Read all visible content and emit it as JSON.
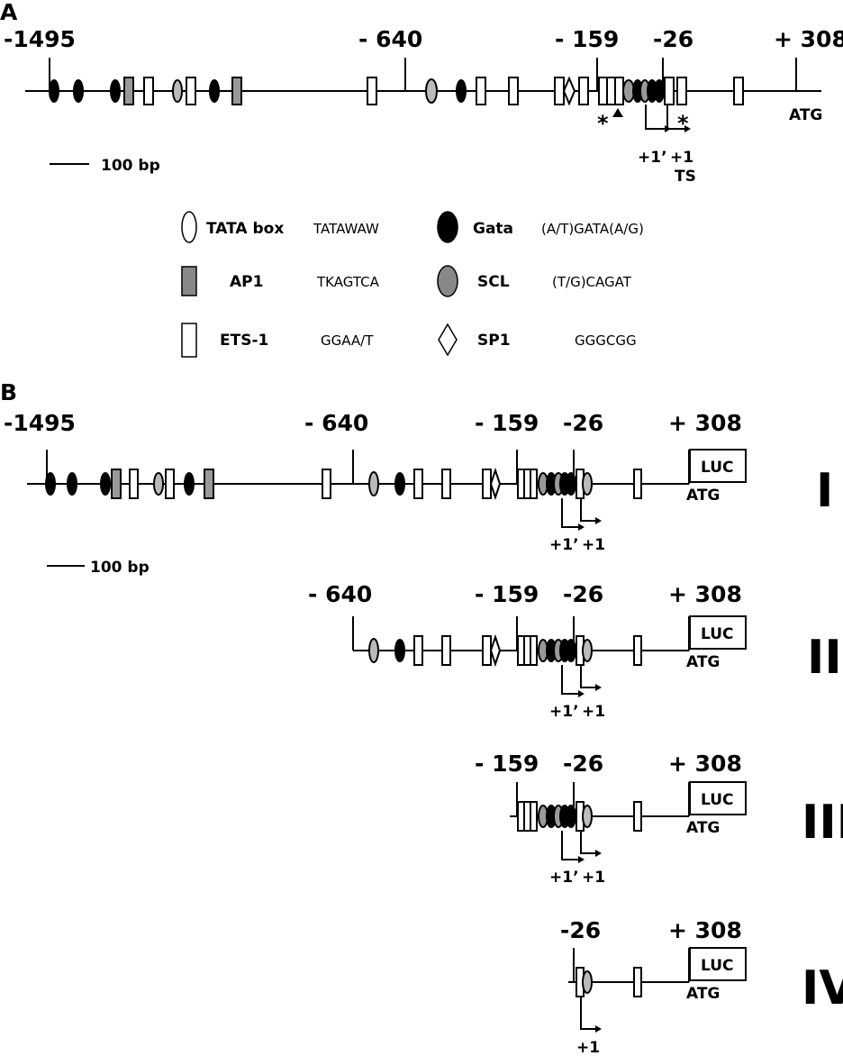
{
  "panel_a": {
    "label": "A",
    "positions": [
      "-1495",
      "- 640",
      "- 159",
      "-26",
      "+ 308"
    ],
    "atg": "ATG",
    "tss": [
      "+1’",
      "+1"
    ],
    "ts": "TS",
    "asterisk": "*",
    "scale": "100 bp"
  },
  "legend": [
    {
      "name": "TATA box",
      "seq": "TATAWAW",
      "icon": "white-ellipse"
    },
    {
      "name": "AP1",
      "seq": "TKAGTCA",
      "icon": "gray-rect"
    },
    {
      "name": "ETS-1",
      "seq": "GGAA/T",
      "icon": "white-rect"
    },
    {
      "name": "Gata",
      "seq": "(A/T)GATA(A/G)",
      "icon": "black-ellipse"
    },
    {
      "name": "SCL",
      "seq": "(T/G)CAGAT",
      "icon": "gray-ellipse"
    },
    {
      "name": "SP1",
      "seq": "GGGCGG",
      "icon": "white-diamond"
    }
  ],
  "panel_b": {
    "label": "B",
    "scale": "100 bp",
    "luc": "LUC",
    "atg": "ATG",
    "constructs": [
      {
        "roman": "I",
        "positions": [
          "-1495",
          "- 640",
          "- 159",
          "-26",
          "+ 308"
        ],
        "tss": [
          "+1’",
          "+1"
        ]
      },
      {
        "roman": "II",
        "positions": [
          "- 640",
          "- 159",
          "-26",
          "+ 308"
        ],
        "tss": [
          "+1’",
          "+1"
        ]
      },
      {
        "roman": "III",
        "positions": [
          "- 159",
          "-26",
          "+ 308"
        ],
        "tss": [
          "+1’",
          "+1"
        ]
      },
      {
        "roman": "IV",
        "positions": [
          "-26",
          "+ 308"
        ],
        "tss": [
          "+1"
        ]
      }
    ]
  }
}
